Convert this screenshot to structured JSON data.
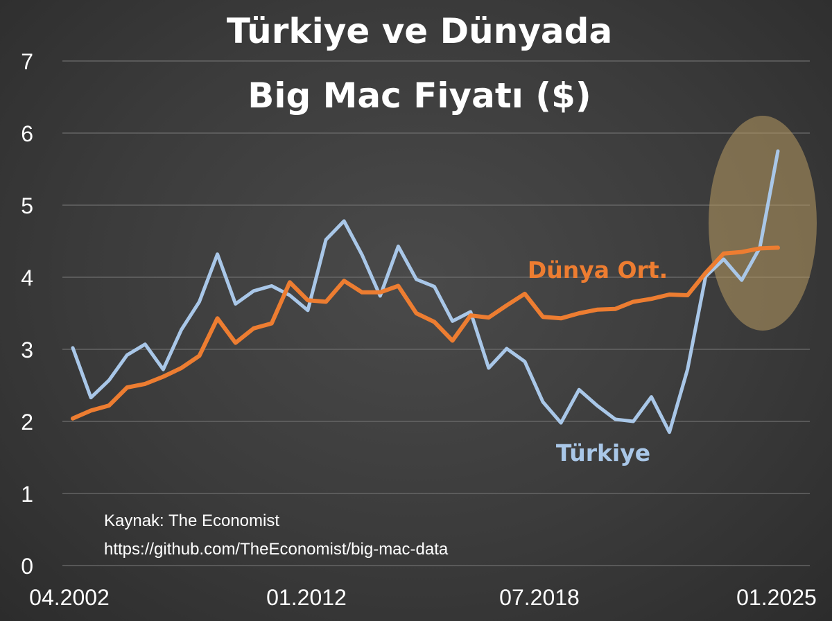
{
  "chart_data": {
    "type": "line",
    "title_line1": "Türkiye ve Dünyada",
    "title_line2": "Big Mac Fiyatı ($)",
    "x_tick_labels": [
      "04.2002",
      "01.2012",
      "07.2018",
      "01.2025"
    ],
    "y_ticks": [
      0,
      1,
      2,
      3,
      4,
      5,
      6,
      7
    ],
    "ylim": [
      0,
      7
    ],
    "grid": true,
    "series": [
      {
        "name": "Türkiye",
        "color": "#a9c7e8",
        "values": [
          3.02,
          2.33,
          2.57,
          2.92,
          3.07,
          2.72,
          3.27,
          3.66,
          4.32,
          3.63,
          3.81,
          3.88,
          3.75,
          3.54,
          4.52,
          4.78,
          4.31,
          3.74,
          4.43,
          3.97,
          3.87,
          3.39,
          3.52,
          2.74,
          3.01,
          2.83,
          2.27,
          1.98,
          2.44,
          2.22,
          2.03,
          2.0,
          2.34,
          1.85,
          2.72,
          4.01,
          4.25,
          3.96,
          4.41,
          5.75
        ]
      },
      {
        "name": "Dünya Ort.",
        "color": "#ed7d31",
        "values": [
          2.04,
          2.15,
          2.22,
          2.47,
          2.52,
          2.62,
          2.74,
          2.91,
          3.43,
          3.09,
          3.29,
          3.36,
          3.93,
          3.68,
          3.66,
          3.95,
          3.79,
          3.79,
          3.88,
          3.5,
          3.38,
          3.12,
          3.47,
          3.44,
          3.61,
          3.77,
          3.45,
          3.43,
          3.5,
          3.55,
          3.56,
          3.66,
          3.7,
          3.76,
          3.75,
          4.06,
          4.33,
          4.35,
          4.4,
          4.41
        ]
      }
    ],
    "annotations": [
      "Kaynak: The Economist",
      "https://github.com/TheEconomist/big-mac-data"
    ],
    "highlight_color": "#b89a63"
  }
}
